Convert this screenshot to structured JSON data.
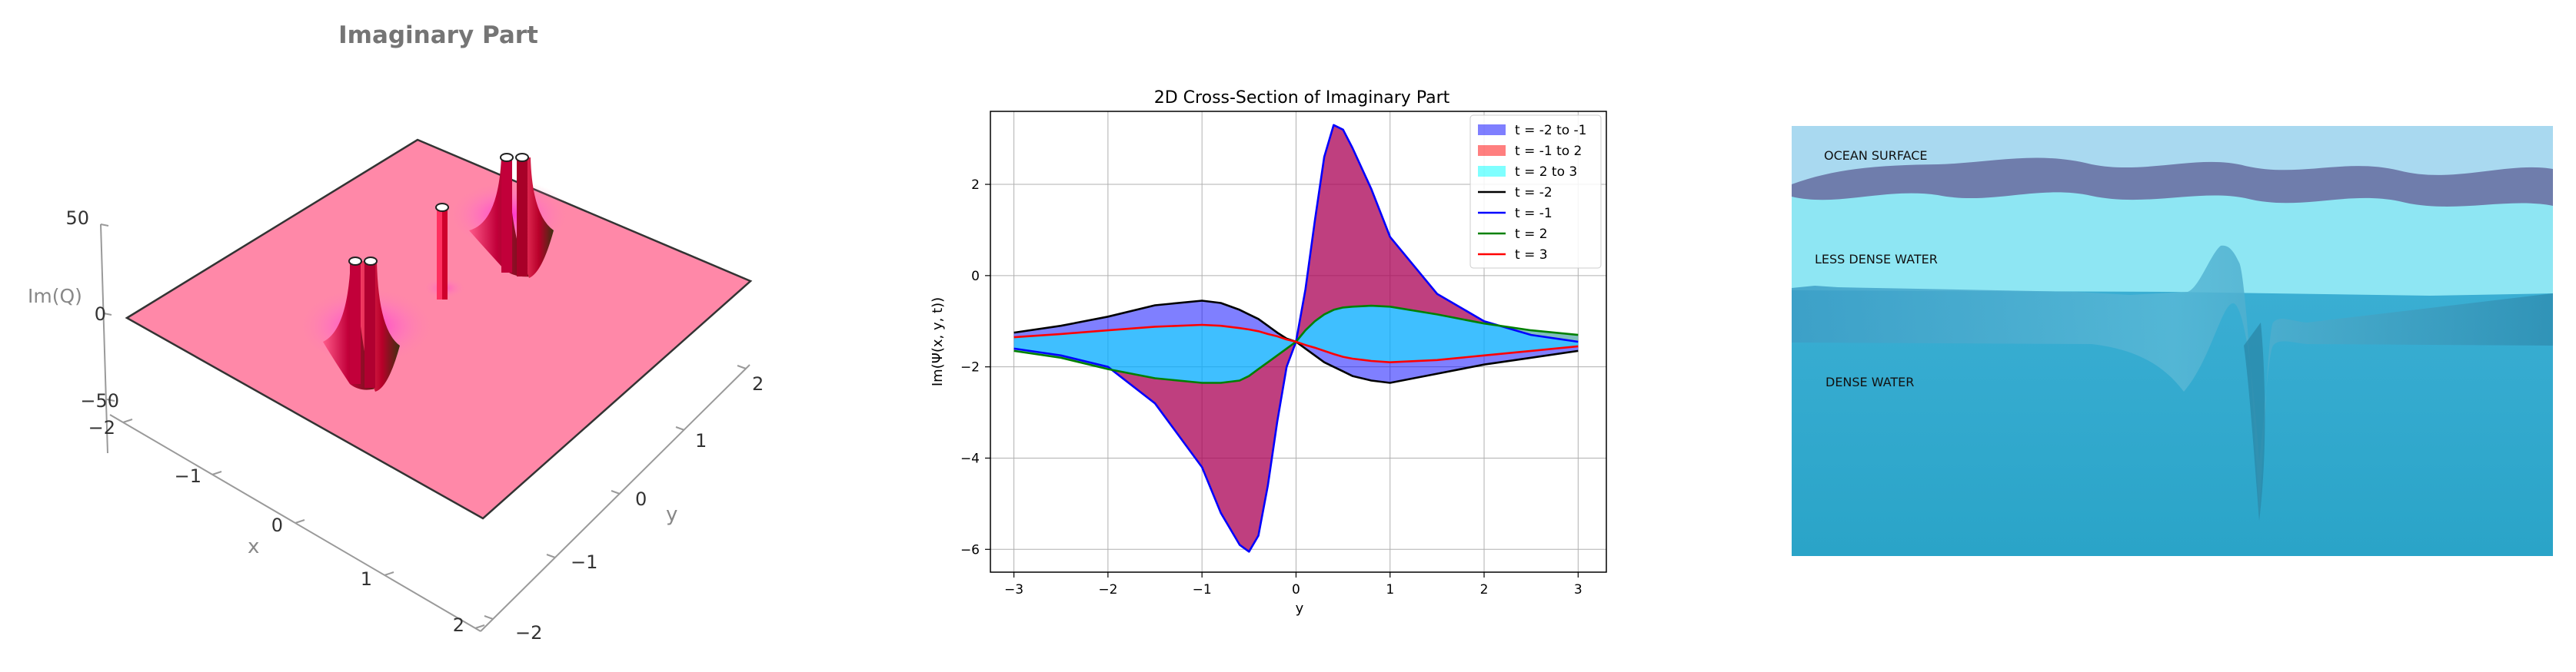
{
  "surface_panel": {
    "title": "Imaginary Part",
    "z_label": "Im(Q)",
    "z_ticks": [
      "50",
      "0",
      "−50"
    ],
    "x_label": "x",
    "x_ticks": [
      "−2",
      "−1",
      "0",
      "1",
      "2"
    ],
    "y_label": "y",
    "y_ticks": [
      "−2",
      "−1",
      "0",
      "1",
      "2"
    ],
    "colors": {
      "plane": "#ff88a8",
      "peak": "#c2003a",
      "magenta": "#ff3cd6"
    }
  },
  "chart_data": {
    "type": "area",
    "title": "2D Cross-Section of Imaginary Part",
    "xlabel": "y",
    "ylabel": "Im(Ψ(x, y, t))",
    "xlim": [
      -3.25,
      3.3
    ],
    "ylim": [
      -6.5,
      3.6
    ],
    "x_ticks": [
      "−3",
      "−2",
      "−1",
      "0",
      "1",
      "2",
      "3"
    ],
    "y_ticks": [
      "−6",
      "−4",
      "−2",
      "0",
      "2"
    ],
    "grid": true,
    "legend_position": "top-right",
    "x": [
      -3.0,
      -2.5,
      -2.0,
      -1.5,
      -1.0,
      -0.8,
      -0.6,
      -0.5,
      -0.4,
      -0.3,
      -0.2,
      -0.1,
      0.0,
      0.1,
      0.2,
      0.3,
      0.4,
      0.5,
      0.6,
      0.8,
      1.0,
      1.5,
      2.0,
      2.5,
      3.0
    ],
    "series": [
      {
        "name": "t = -2",
        "color": "#000000",
        "values": [
          -1.25,
          -1.1,
          -0.9,
          -0.65,
          -0.55,
          -0.6,
          -0.75,
          -0.85,
          -0.95,
          -1.1,
          -1.25,
          -1.38,
          -1.45,
          -1.6,
          -1.75,
          -1.9,
          -2.0,
          -2.1,
          -2.2,
          -2.3,
          -2.35,
          -2.15,
          -1.95,
          -1.8,
          -1.65
        ]
      },
      {
        "name": "t = -1",
        "color": "#0000ff",
        "values": [
          -1.6,
          -1.75,
          -2.0,
          -2.8,
          -4.2,
          -5.2,
          -5.9,
          -6.05,
          -5.7,
          -4.6,
          -3.2,
          -2.0,
          -1.45,
          -0.3,
          1.2,
          2.6,
          3.3,
          3.2,
          2.8,
          1.9,
          0.85,
          -0.4,
          -1.0,
          -1.3,
          -1.45
        ]
      },
      {
        "name": "t = 2",
        "color": "#008000",
        "values": [
          -1.65,
          -1.8,
          -2.05,
          -2.25,
          -2.35,
          -2.35,
          -2.3,
          -2.2,
          -2.05,
          -1.9,
          -1.75,
          -1.6,
          -1.45,
          -1.2,
          -1.0,
          -0.85,
          -0.75,
          -0.7,
          -0.68,
          -0.66,
          -0.68,
          -0.85,
          -1.05,
          -1.2,
          -1.3
        ]
      },
      {
        "name": "t = 3",
        "color": "#ff0000",
        "values": [
          -1.35,
          -1.28,
          -1.2,
          -1.12,
          -1.08,
          -1.1,
          -1.15,
          -1.18,
          -1.22,
          -1.28,
          -1.33,
          -1.4,
          -1.45,
          -1.52,
          -1.58,
          -1.65,
          -1.72,
          -1.78,
          -1.82,
          -1.87,
          -1.9,
          -1.85,
          -1.75,
          -1.65,
          -1.55
        ]
      }
    ],
    "fills": [
      {
        "name": "t = -2 to -1",
        "color": "#0000ff",
        "alpha": 0.5,
        "from": "t = -2",
        "to": "t = -1"
      },
      {
        "name": "t = -1 to 2",
        "color": "#ff0000",
        "alpha": 0.5,
        "from": "t = -1",
        "to": "t = 2"
      },
      {
        "name": "t = 2 to 3",
        "color": "#00ffff",
        "alpha": 0.5,
        "from": "t = 2",
        "to": "t = 3"
      }
    ]
  },
  "ocean_panel": {
    "labels": {
      "surface": "OCEAN SURFACE",
      "less_dense": "LESS DENSE WATER",
      "dense": "DENSE WATER"
    },
    "colors": {
      "sky": "#a8d8ef",
      "surface": "#6b7aa8",
      "less_dense": "#8ee4f2",
      "dense": "#30a8cc"
    }
  }
}
